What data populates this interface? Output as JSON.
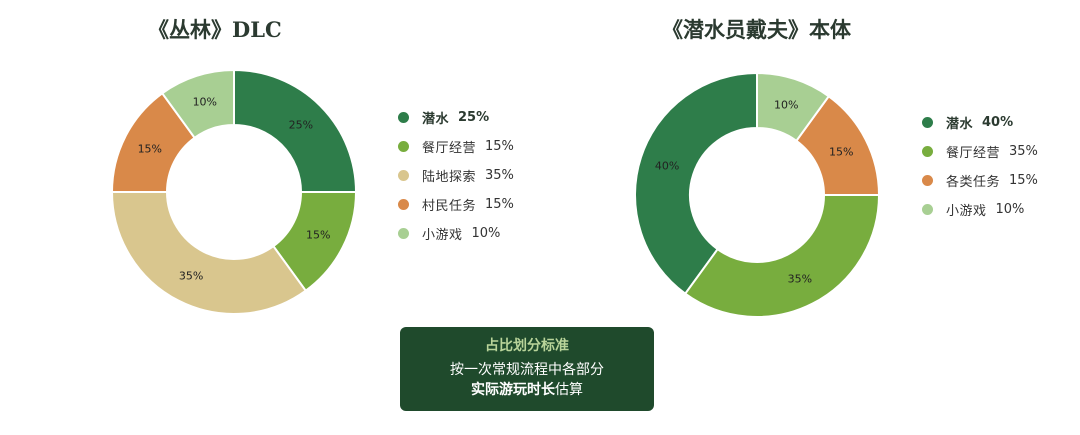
{
  "chart_data": [
    {
      "type": "pie",
      "title": "《丛林》DLC",
      "donut": true,
      "start_angle_deg": 0,
      "direction": "clockwise",
      "slices": [
        {
          "name": "潜水",
          "value": 25,
          "label": "25%",
          "color": "#2e7d4a",
          "emphasis": true
        },
        {
          "name": "餐厅经营",
          "value": 15,
          "label": "15%",
          "color": "#78ad3e",
          "emphasis": false
        },
        {
          "name": "陆地探索",
          "value": 35,
          "label": "35%",
          "color": "#d9c68e",
          "emphasis": false
        },
        {
          "name": "村民任务",
          "value": 15,
          "label": "15%",
          "color": "#d98949",
          "emphasis": false
        },
        {
          "name": "小游戏",
          "value": 10,
          "label": "10%",
          "color": "#a8cf93",
          "emphasis": false
        }
      ],
      "legend_position": "right"
    },
    {
      "type": "pie",
      "title": "《潜水员戴夫》本体",
      "donut": true,
      "start_angle_deg": 0,
      "direction": "counterclockwise",
      "slices": [
        {
          "name": "潜水",
          "value": 40,
          "label": "40%",
          "color": "#2e7d4a",
          "emphasis": true
        },
        {
          "name": "餐厅经营",
          "value": 35,
          "label": "35%",
          "color": "#78ad3e",
          "emphasis": false
        },
        {
          "name": "各类任务",
          "value": 15,
          "label": "15%",
          "color": "#d98949",
          "emphasis": false
        },
        {
          "name": "小游戏",
          "value": 10,
          "label": "10%",
          "color": "#a8cf93",
          "emphasis": false
        }
      ],
      "legend_position": "right"
    }
  ],
  "note": {
    "title": "占比划分标准",
    "line1": "按一次常规流程中各部分",
    "line2_bold": "实际游玩时长",
    "line2_rest": "估算",
    "background": "#1f4a2c"
  }
}
